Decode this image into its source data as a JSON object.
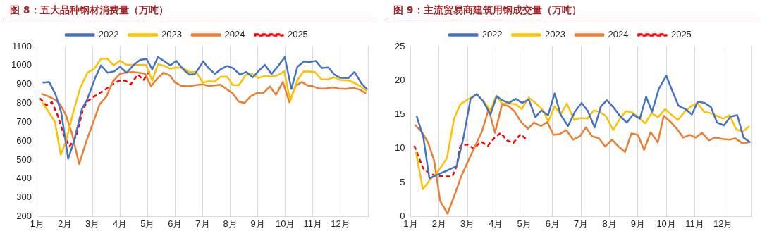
{
  "chart_data": [
    {
      "type": "line",
      "title": "图 8：五大品种钢材消费量（万吨）",
      "xlim": [
        1,
        13
      ],
      "xticks": [
        {
          "value": 1,
          "label": "1月"
        },
        {
          "value": 2,
          "label": "2月"
        },
        {
          "value": 3,
          "label": "3月"
        },
        {
          "value": 4,
          "label": "4月"
        },
        {
          "value": 5,
          "label": "5月"
        },
        {
          "value": 6,
          "label": "6月"
        },
        {
          "value": 7,
          "label": "7月"
        },
        {
          "value": 8,
          "label": "8月"
        },
        {
          "value": 9,
          "label": "9月"
        },
        {
          "value": 10,
          "label": "10月"
        },
        {
          "value": 11,
          "label": "11月"
        },
        {
          "value": 12,
          "label": "12月"
        },
        {
          "value": 13,
          "label": null
        }
      ],
      "ylim": [
        200,
        1100
      ],
      "yticks": [
        200,
        300,
        400,
        500,
        600,
        700,
        800,
        900,
        1000,
        1100
      ],
      "grid": "x",
      "legend": "top",
      "marker": "none",
      "series": [
        {
          "name": "2022",
          "color": "#4472c4",
          "line_style": "solid",
          "x": [
            1.19,
            1.43,
            1.66,
            1.87,
            2.12,
            2.33,
            2.62,
            2.81,
            3.09,
            3.31,
            3.55,
            3.8,
            4.0,
            4.24,
            4.48,
            4.72,
            4.96,
            5.17,
            5.38,
            5.62,
            5.83,
            6.04,
            6.3,
            6.51,
            6.72,
            7.02,
            7.23,
            7.45,
            7.65,
            7.89,
            8.1,
            8.36,
            8.58,
            8.82,
            9.04,
            9.26,
            9.5,
            9.72,
            9.98,
            10.22,
            10.44,
            10.68,
            10.88,
            11.1,
            11.33,
            11.56,
            11.78,
            12.0,
            12.29,
            12.51,
            12.77,
            12.98
          ],
          "values": [
            909,
            912,
            847,
            750,
            506,
            597,
            770,
            819,
            930,
            1000,
            961,
            969,
            993,
            961,
            1000,
            1028,
            1035,
            979,
            1044,
            1021,
            1000,
            1024,
            979,
            951,
            954,
            1021,
            983,
            955,
            979,
            997,
            986,
            951,
            965,
            937,
            972,
            1003,
            954,
            993,
            1044,
            875,
            993,
            1021,
            1018,
            1024,
            986,
            989,
            951,
            934,
            933,
            965,
            903,
            872
          ]
        },
        {
          "name": "2023",
          "color": "#ffc000",
          "line_style": "solid",
          "x": [
            1.17,
            1.4,
            1.64,
            1.85,
            2.04,
            2.3,
            2.56,
            2.82,
            3.07,
            3.31,
            3.53,
            3.77,
            4.0,
            4.24,
            4.48,
            4.72,
            4.94,
            5.17,
            5.38,
            5.62,
            5.83,
            6.04,
            6.3,
            6.51,
            6.77,
            7.0,
            7.21,
            7.43,
            7.65,
            7.88,
            8.1,
            8.32,
            8.57,
            8.81,
            9.02,
            9.26,
            9.5,
            9.72,
            9.96,
            10.18,
            10.44,
            10.66,
            10.88,
            11.07,
            11.31,
            11.54,
            11.77,
            12.0,
            12.27,
            12.49,
            12.73,
            12.96
          ],
          "values": [
            805,
            756,
            701,
            527,
            597,
            750,
            882,
            961,
            983,
            1035,
            1037,
            1000,
            1025,
            1003,
            1003,
            1003,
            1003,
            919,
            1007,
            997,
            982,
            989,
            986,
            965,
            965,
            909,
            916,
            914,
            940,
            941,
            896,
            896,
            951,
            954,
            933,
            944,
            941,
            947,
            969,
            812,
            923,
            968,
            968,
            965,
            926,
            926,
            937,
            923,
            921,
            909,
            889,
            864
          ]
        },
        {
          "name": "2024",
          "color": "#ed7d31",
          "line_style": "solid",
          "x": [
            1.15,
            1.4,
            1.64,
            1.83,
            2.04,
            2.26,
            2.52,
            2.76,
            3.02,
            3.26,
            3.5,
            3.75,
            3.99,
            4.21,
            4.46,
            4.68,
            4.91,
            5.13,
            5.35,
            5.58,
            5.81,
            6.0,
            6.24,
            6.46,
            6.77,
            7.0,
            7.21,
            7.43,
            7.65,
            7.86,
            8.08,
            8.31,
            8.52,
            8.74,
            8.98,
            9.21,
            9.44,
            9.66,
            9.91,
            10.15,
            10.37,
            10.6,
            10.81,
            11.01,
            11.25,
            11.47,
            11.71,
            11.95,
            12.22,
            12.46,
            12.71,
            12.93
          ],
          "values": [
            850,
            836,
            819,
            794,
            736,
            638,
            478,
            590,
            694,
            794,
            833,
            916,
            954,
            962,
            965,
            961,
            955,
            889,
            930,
            961,
            947,
            909,
            891,
            889,
            896,
            900,
            891,
            894,
            898,
            875,
            854,
            808,
            801,
            836,
            854,
            854,
            889,
            844,
            912,
            805,
            891,
            912,
            893,
            889,
            877,
            877,
            884,
            877,
            875,
            882,
            871,
            851
          ]
        },
        {
          "name": "2025",
          "color": "#ff0000",
          "line_style": "dashed",
          "x": [
            1.1,
            1.32,
            1.53,
            1.74,
            1.96,
            2.17,
            2.41,
            2.65,
            2.8,
            3.04,
            3.27,
            3.5,
            3.75,
            3.97,
            4.2,
            4.39,
            4.65,
            4.86,
            5.07
          ],
          "values": [
            826,
            788,
            805,
            736,
            631,
            571,
            624,
            763,
            808,
            833,
            854,
            875,
            902,
            919,
            919,
            900,
            951,
            923,
            969
          ]
        }
      ]
    },
    {
      "type": "line",
      "title": "图 9：主流贸易商建筑用钢成交量（万吨）",
      "xlim": [
        1,
        13
      ],
      "xticks": [
        {
          "value": 1,
          "label": "1月"
        },
        {
          "value": 2,
          "label": "2月"
        },
        {
          "value": 3,
          "label": "3月"
        },
        {
          "value": 4,
          "label": "4月"
        },
        {
          "value": 5,
          "label": "5月"
        },
        {
          "value": 6,
          "label": "6月"
        },
        {
          "value": 7,
          "label": "7月"
        },
        {
          "value": 8,
          "label": "8月"
        },
        {
          "value": 9,
          "label": "9月"
        },
        {
          "value": 10,
          "label": "10月"
        },
        {
          "value": 11,
          "label": "11月"
        },
        {
          "value": 12,
          "label": "12月"
        },
        {
          "value": 13,
          "label": null
        }
      ],
      "ylim": [
        0,
        25
      ],
      "yticks": [
        0,
        5,
        10,
        15,
        20,
        25
      ],
      "grid": "x",
      "legend": "top",
      "marker": "none",
      "series": [
        {
          "name": "2022",
          "color": "#4472c4",
          "line_style": "solid",
          "x": [
            1.21,
            1.45,
            1.66,
            1.96,
            2.31,
            2.62,
            2.86,
            3.11,
            3.33,
            3.56,
            3.81,
            4.03,
            4.22,
            4.46,
            4.7,
            4.93,
            5.16,
            5.39,
            5.6,
            5.84,
            6.07,
            6.28,
            6.54,
            6.78,
            7.02,
            7.24,
            7.48,
            7.7,
            7.91,
            8.15,
            8.37,
            8.61,
            8.83,
            9.07,
            9.29,
            9.5,
            9.74,
            10.0,
            10.22,
            10.43,
            10.67,
            10.9,
            11.11,
            11.35,
            11.57,
            11.79,
            12.03,
            12.26,
            12.5,
            12.72,
            12.96
          ],
          "values": [
            14.8,
            11.6,
            5.6,
            6.2,
            6.8,
            7.4,
            11.6,
            17.3,
            18.0,
            16.9,
            15.0,
            17.7,
            17.1,
            16.7,
            17.3,
            16.7,
            17.2,
            14.6,
            15.6,
            14.9,
            18.1,
            15.0,
            13.3,
            15.4,
            16.7,
            15.5,
            13.1,
            16.2,
            17.1,
            16.0,
            14.8,
            13.8,
            15.0,
            14.4,
            17.6,
            15.4,
            18.8,
            20.7,
            18.4,
            16.3,
            15.8,
            15.0,
            16.9,
            16.7,
            16.1,
            13.8,
            13.4,
            14.7,
            14.9,
            11.6,
            10.9
          ]
        },
        {
          "name": "2023",
          "color": "#ffc000",
          "line_style": "solid",
          "x": [
            1.19,
            1.43,
            1.7,
            1.96,
            2.28,
            2.53,
            2.75,
            3.09,
            3.33,
            3.56,
            3.81,
            4.01,
            4.22,
            4.46,
            4.7,
            4.91,
            5.16,
            5.39,
            5.65,
            5.85,
            6.07,
            6.28,
            6.5,
            6.76,
            7.0,
            7.22,
            7.45,
            7.65,
            7.87,
            8.13,
            8.37,
            8.58,
            8.81,
            9.04,
            9.26,
            9.48,
            9.71,
            9.96,
            10.17,
            10.41,
            10.65,
            10.87,
            11.1,
            11.33,
            11.57,
            11.78,
            12.0,
            12.23,
            12.46,
            12.7,
            12.93
          ],
          "values": [
            9.5,
            4.0,
            5.5,
            6.6,
            8.6,
            14.4,
            16.5,
            17.4,
            18.0,
            17.0,
            15.6,
            17.7,
            16.6,
            16.6,
            16.5,
            15.8,
            17.5,
            16.7,
            15.7,
            14.0,
            16.2,
            15.0,
            16.6,
            14.2,
            14.5,
            14.4,
            15.6,
            15.4,
            14.8,
            12.7,
            14.4,
            15.5,
            15.3,
            14.5,
            13.7,
            15.2,
            14.6,
            15.8,
            15.0,
            14.2,
            15.4,
            16.2,
            16.7,
            15.4,
            15.2,
            14.8,
            14.4,
            14.9,
            12.8,
            12.5,
            13.3
          ]
        },
        {
          "name": "2024",
          "color": "#ed7d31",
          "line_style": "solid",
          "x": [
            1.15,
            1.4,
            1.62,
            1.83,
            2.04,
            2.3,
            2.55,
            2.79,
            3.02,
            3.25,
            3.51,
            3.75,
            3.97,
            4.22,
            4.46,
            4.65,
            4.89,
            5.13,
            5.34,
            5.59,
            5.81,
            6.03,
            6.24,
            6.48,
            6.72,
            6.96,
            7.17,
            7.39,
            7.63,
            7.85,
            8.09,
            8.32,
            8.55,
            8.77,
            9.0,
            9.22,
            9.45,
            9.7,
            9.91,
            10.13,
            10.37,
            10.6,
            10.83,
            11.03,
            11.26,
            11.5,
            11.72,
            11.99,
            12.23,
            12.43,
            12.67,
            12.9
          ],
          "values": [
            13.5,
            12.4,
            10.8,
            8.2,
            2.3,
            0.4,
            3.2,
            6.0,
            8.1,
            10.2,
            12.5,
            15.8,
            12.3,
            16.5,
            16.2,
            15.5,
            13.9,
            12.9,
            13.8,
            13.3,
            13.9,
            12.0,
            12.1,
            12.7,
            11.3,
            11.8,
            13.1,
            11.8,
            11.5,
            10.3,
            11.3,
            10.3,
            9.5,
            12.2,
            12.0,
            9.8,
            12.4,
            10.9,
            14.8,
            14.0,
            12.9,
            11.6,
            12.0,
            11.6,
            12.3,
            11.2,
            11.6,
            11.4,
            11.3,
            11.5,
            10.8,
            10.9
          ]
        },
        {
          "name": "2025",
          "color": "#ff0000",
          "line_style": "dashed",
          "x": [
            1.13,
            1.27,
            1.44,
            1.66,
            1.91,
            2.17,
            2.47,
            2.62,
            2.75,
            3.0,
            3.22,
            3.48,
            3.72,
            3.96,
            4.17,
            4.39,
            4.61,
            4.87,
            5.09
          ],
          "values": [
            10.4,
            8.9,
            7.1,
            6.3,
            6.0,
            5.9,
            5.9,
            7.4,
            10.4,
            10.6,
            10.0,
            11.0,
            10.4,
            11.6,
            12.3,
            11.2,
            10.8,
            12.1,
            11.3
          ]
        }
      ]
    }
  ]
}
